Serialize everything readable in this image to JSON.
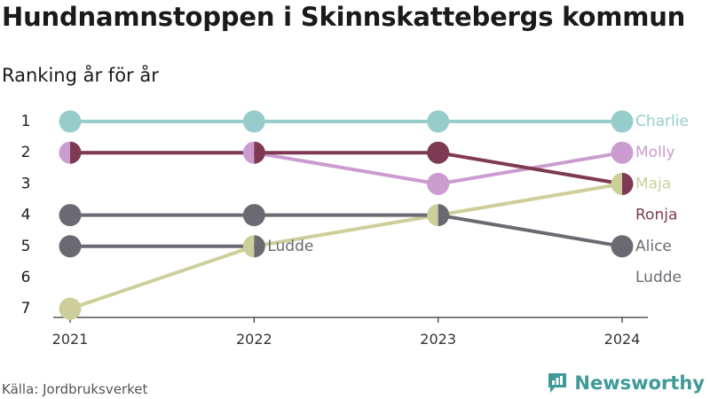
{
  "title": "Hundnamnstoppen i Skinnskattebergs kommun",
  "subtitle": "Ranking år för år",
  "source": "Källa: Jordbruksverket",
  "brand": {
    "name": "Newsworthy",
    "icon": "newsworthy-logo-icon",
    "color": "#3e9a96"
  },
  "chart_data": {
    "type": "line",
    "subtype": "bump",
    "x": [
      "2021",
      "2022",
      "2023",
      "2024"
    ],
    "y_ticks": [
      "1",
      "2",
      "3",
      "4",
      "5",
      "6",
      "7"
    ],
    "ylim": [
      1,
      7
    ],
    "y_reversed": true,
    "grid": false,
    "series": [
      {
        "name": "Charlie",
        "color": "#96cdcb",
        "values": [
          1,
          1,
          1,
          1
        ]
      },
      {
        "name": "Molly",
        "color": "#cb9ccf",
        "values": [
          2,
          2,
          3,
          2
        ]
      },
      {
        "name": "Maja",
        "color": "#cdcf9a",
        "values": [
          7,
          5,
          4,
          3
        ]
      },
      {
        "name": "Ronja",
        "color": "#7e3a52",
        "values": [
          2,
          2,
          2,
          3
        ]
      },
      {
        "name": "Alice",
        "color": "#6b6a72",
        "values": [
          4,
          4,
          4,
          5
        ]
      },
      {
        "name": "Ludde",
        "color": "#6b6a72",
        "values": [
          5,
          5,
          null,
          null
        ]
      }
    ],
    "annotations": [
      {
        "text": "Ludde",
        "x": "2022",
        "y": 5,
        "color": "#6b6a72"
      }
    ],
    "end_labels": [
      {
        "text": "Charlie",
        "rank": 1,
        "color": "#96cdcb"
      },
      {
        "text": "Molly",
        "rank": 2,
        "color": "#cb9ccf"
      },
      {
        "text": "Maja",
        "rank": 3,
        "color": "#cdcf9a"
      },
      {
        "text": "Ronja",
        "rank": 4,
        "color": "#7e3a52"
      },
      {
        "text": "Alice",
        "rank": 5,
        "color": "#6b6a72"
      },
      {
        "text": "Ludde",
        "rank": 6,
        "color": "#6b6a72"
      }
    ]
  }
}
